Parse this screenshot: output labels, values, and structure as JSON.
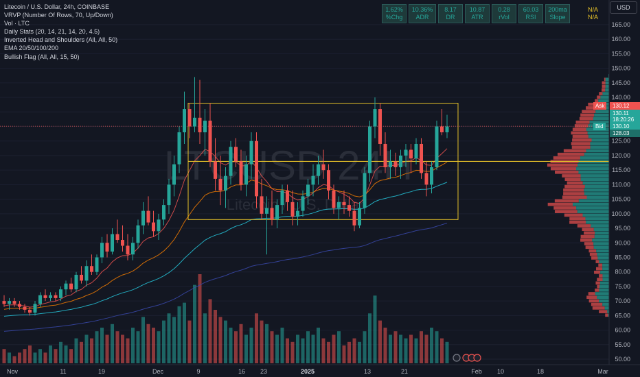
{
  "legend": {
    "title": "Litecoin / U.S. Dollar, 24h, COINBASE",
    "indicators": [
      "VRVP (Number Of Rows, 70, Up/Down)",
      "Vol · LTC",
      "Daily Stats (20, 14, 21, 14, 20, 4.5)",
      "Inverted Head and Shoulders (All, All, 50)",
      "EMA 20/50/100/200",
      "Bullish Flag (All, All, 15, 50)"
    ]
  },
  "watermark": {
    "symbol": "LTCUSD 24H",
    "name": "Litecoin / U.S. Dollar"
  },
  "stats": [
    {
      "value": "1.62%",
      "label": "%Chg"
    },
    {
      "value": "10.36%",
      "label": "ADR"
    },
    {
      "value": "8.17",
      "label": "DR"
    },
    {
      "value": "10.87",
      "label": "ATR"
    },
    {
      "value": "0.28",
      "label": "rVol"
    },
    {
      "value": "60.03",
      "label": "RSI"
    },
    {
      "value": "200ma",
      "label": "Slope"
    }
  ],
  "na_labels": [
    "N/A",
    "N/A"
  ],
  "currency_button": "USD",
  "price_axis": {
    "ticks": [
      "165.00",
      "160.00",
      "155.00",
      "150.00",
      "145.00",
      "140.00",
      "135.00",
      "130.00",
      "125.00",
      "120.00",
      "115.00",
      "110.00",
      "105.00",
      "100.00",
      "95.00",
      "90.00",
      "85.00",
      "80.00",
      "75.00",
      "70.00",
      "65.00",
      "60.00",
      "55.00",
      "50.00"
    ],
    "ask_label": "Ask",
    "ask_value": "130.12",
    "last_value": "130.11",
    "countdown": "18:20:26",
    "bid_label": "Bid",
    "bid_value": "130.10",
    "other_value": "128.03"
  },
  "time_axis": [
    "Nov",
    "11",
    "19",
    "Dec",
    "9",
    "16",
    "23",
    "2025",
    "13",
    "21",
    "Feb",
    "10",
    "18",
    "Mar"
  ],
  "colors": {
    "up": "#26a69a",
    "down": "#ef5350",
    "bg": "#131722",
    "box": "#e6c229"
  },
  "chart_data": {
    "type": "candlestick",
    "title": "Litecoin / U.S. Dollar, 24h, COINBASE",
    "y_range": [
      48,
      170
    ],
    "resistance_box": {
      "top": 138,
      "mid": 118,
      "bottom": 98
    },
    "ohlc": [
      [
        70,
        72,
        68,
        69
      ],
      [
        69,
        71,
        67,
        70
      ],
      [
        70,
        71,
        68,
        69
      ],
      [
        69,
        70,
        67,
        68
      ],
      [
        68,
        69,
        66,
        67
      ],
      [
        67,
        68,
        65,
        66
      ],
      [
        66,
        70,
        65,
        69
      ],
      [
        69,
        73,
        68,
        72
      ],
      [
        72,
        74,
        70,
        71
      ],
      [
        71,
        73,
        70,
        72
      ],
      [
        72,
        73,
        70,
        71
      ],
      [
        71,
        75,
        70,
        74
      ],
      [
        74,
        77,
        72,
        76
      ],
      [
        76,
        78,
        73,
        74
      ],
      [
        74,
        80,
        73,
        79
      ],
      [
        79,
        82,
        76,
        77
      ],
      [
        77,
        84,
        75,
        82
      ],
      [
        82,
        86,
        79,
        80
      ],
      [
        80,
        86,
        79,
        85
      ],
      [
        85,
        92,
        83,
        90
      ],
      [
        90,
        93,
        85,
        87
      ],
      [
        87,
        95,
        86,
        93
      ],
      [
        93,
        98,
        90,
        91
      ],
      [
        91,
        96,
        87,
        89
      ],
      [
        89,
        93,
        84,
        86
      ],
      [
        86,
        92,
        84,
        90
      ],
      [
        90,
        98,
        88,
        96
      ],
      [
        96,
        104,
        93,
        101
      ],
      [
        101,
        106,
        96,
        97
      ],
      [
        97,
        101,
        92,
        94
      ],
      [
        94,
        100,
        91,
        98
      ],
      [
        98,
        105,
        96,
        103
      ],
      [
        103,
        112,
        100,
        110
      ],
      [
        110,
        120,
        106,
        117
      ],
      [
        117,
        130,
        114,
        128
      ],
      [
        128,
        142,
        124,
        136
      ],
      [
        136,
        138,
        126,
        130
      ],
      [
        130,
        147,
        128,
        133
      ],
      [
        133,
        146,
        124,
        128
      ],
      [
        128,
        136,
        120,
        132
      ],
      [
        132,
        138,
        116,
        118
      ],
      [
        118,
        126,
        108,
        112
      ],
      [
        112,
        120,
        103,
        108
      ],
      [
        108,
        116,
        102,
        113
      ],
      [
        113,
        125,
        110,
        123
      ],
      [
        123,
        126,
        116,
        118
      ],
      [
        118,
        122,
        108,
        110
      ],
      [
        110,
        120,
        106,
        117
      ],
      [
        117,
        128,
        112,
        125
      ],
      [
        125,
        128,
        102,
        106
      ],
      [
        106,
        112,
        98,
        100
      ],
      [
        100,
        106,
        86,
        102
      ],
      [
        102,
        108,
        96,
        98
      ],
      [
        98,
        105,
        95,
        103
      ],
      [
        103,
        110,
        100,
        108
      ],
      [
        108,
        110,
        101,
        104
      ],
      [
        104,
        108,
        96,
        99
      ],
      [
        99,
        104,
        96,
        101
      ],
      [
        101,
        108,
        99,
        106
      ],
      [
        106,
        112,
        103,
        110
      ],
      [
        110,
        117,
        106,
        113
      ],
      [
        113,
        120,
        110,
        117
      ],
      [
        117,
        122,
        112,
        115
      ],
      [
        115,
        117,
        105,
        108
      ],
      [
        108,
        110,
        100,
        102
      ],
      [
        102,
        106,
        98,
        104
      ],
      [
        104,
        108,
        100,
        103
      ],
      [
        103,
        106,
        99,
        101
      ],
      [
        101,
        104,
        94,
        96
      ],
      [
        96,
        104,
        95,
        102
      ],
      [
        102,
        116,
        100,
        114
      ],
      [
        114,
        132,
        111,
        130
      ],
      [
        130,
        140,
        126,
        136
      ],
      [
        136,
        138,
        120,
        124
      ],
      [
        124,
        128,
        114,
        116
      ],
      [
        116,
        122,
        112,
        118
      ],
      [
        118,
        121,
        113,
        116
      ],
      [
        116,
        122,
        112,
        120
      ],
      [
        120,
        124,
        116,
        122
      ],
      [
        122,
        124,
        114,
        119
      ],
      [
        119,
        126,
        117,
        124
      ],
      [
        124,
        126,
        112,
        114
      ],
      [
        114,
        118,
        106,
        110
      ],
      [
        110,
        118,
        107,
        116
      ],
      [
        116,
        132,
        115,
        130
      ],
      [
        130,
        136,
        127,
        128
      ],
      [
        128,
        134,
        126,
        130
      ]
    ],
    "volume": [
      4,
      3,
      2,
      3,
      4,
      5,
      3,
      4,
      3,
      5,
      4,
      6,
      5,
      4,
      7,
      6,
      8,
      7,
      9,
      10,
      8,
      11,
      9,
      8,
      7,
      10,
      9,
      13,
      11,
      10,
      9,
      12,
      14,
      13,
      16,
      17,
      12,
      22,
      25,
      14,
      18,
      15,
      13,
      12,
      10,
      9,
      11,
      8,
      10,
      14,
      12,
      11,
      9,
      8,
      10,
      7,
      6,
      8,
      7,
      9,
      8,
      10,
      7,
      6,
      8,
      9,
      5,
      6,
      7,
      6,
      9,
      14,
      19,
      12,
      10,
      8,
      9,
      8,
      7,
      8,
      7,
      9,
      8,
      10,
      9,
      7,
      6
    ]
  }
}
